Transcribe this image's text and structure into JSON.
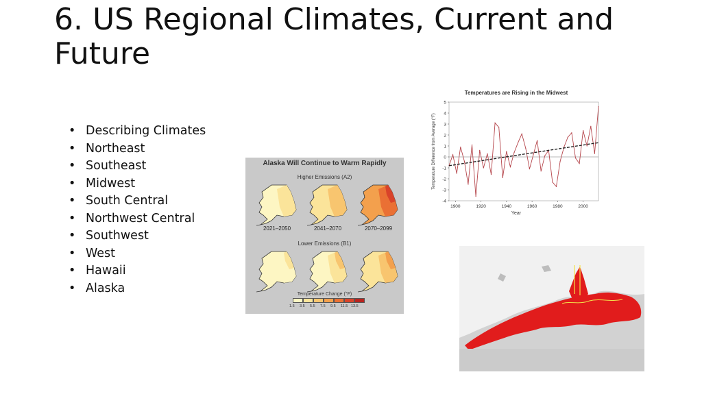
{
  "title": "6. US Regional Climates, Current and Future",
  "bullets": [
    "Describing Climates",
    "Northeast",
    "Southeast",
    "Midwest",
    "South Central",
    "Northwest Central",
    "Southwest",
    "West",
    "Hawaii",
    "Alaska"
  ],
  "alaska_figure": {
    "title": "Alaska Will Continue to Warm Rapidly",
    "higher_label": "Higher Emissions (A2)",
    "lower_label": "Lower Emissions (B1)",
    "periods": [
      "2021–2050",
      "2041–2070",
      "2070–2099"
    ],
    "legend_title": "Temperature Change (°F)",
    "legend_ticks": [
      "1.5",
      "3.5",
      "5.5",
      "7.5",
      "9.5",
      "11.5",
      "13.5"
    ],
    "colors": [
      "#fdf6c3",
      "#fbe49a",
      "#f8c56f",
      "#f3a04d",
      "#ea7034",
      "#d9432a",
      "#b9241f"
    ]
  },
  "chart_data": {
    "type": "line",
    "title": "Temperatures are Rising in the Midwest",
    "xlabel": "Year",
    "ylabel": "Temperature Difference from Average (°F)",
    "xlim": [
      1895,
      2012
    ],
    "ylim": [
      -4,
      5
    ],
    "x_ticks": [
      1900,
      1920,
      1940,
      1960,
      1980,
      2000
    ],
    "y_ticks": [
      -4,
      -3,
      -2,
      -1,
      0,
      1,
      2,
      3,
      4,
      5
    ],
    "series": [
      {
        "x": [
          1895,
          1898,
          1901,
          1904,
          1907,
          1910,
          1913,
          1916,
          1919,
          1922,
          1925,
          1928,
          1931,
          1934,
          1937,
          1940,
          1943,
          1946,
          1949,
          1952,
          1955,
          1958,
          1961,
          1964,
          1967,
          1970,
          1973,
          1976,
          1979,
          1982,
          1985,
          1988,
          1991,
          1994,
          1997,
          2000,
          2003,
          2006,
          2009,
          2012
        ],
        "y": [
          -0.8,
          0.2,
          -1.5,
          0.9,
          -0.4,
          -2.5,
          1.1,
          -3.6,
          0.6,
          -1.0,
          0.3,
          -1.6,
          3.1,
          2.7,
          -1.9,
          0.5,
          -0.9,
          0.4,
          1.3,
          2.1,
          0.8,
          -1.1,
          0.2,
          1.5,
          -1.3,
          0.1,
          0.6,
          -2.3,
          -2.7,
          -0.4,
          0.9,
          1.8,
          2.2,
          -0.1,
          -0.6,
          2.4,
          1.0,
          2.8,
          0.3,
          4.6
        ]
      },
      {
        "name": "",
        "style": "trend",
        "x": [
          1895,
          2012
        ],
        "y": [
          -0.8,
          1.3
        ]
      }
    ],
    "colors": {
      "line": "#b5454b",
      "trend": "#222222"
    }
  },
  "gulf_map": {
    "colors": {
      "land": "#cfcfcf",
      "water": "#f3f3f3",
      "loss": "#e01b1b",
      "highlight": "#f2e24a"
    }
  }
}
